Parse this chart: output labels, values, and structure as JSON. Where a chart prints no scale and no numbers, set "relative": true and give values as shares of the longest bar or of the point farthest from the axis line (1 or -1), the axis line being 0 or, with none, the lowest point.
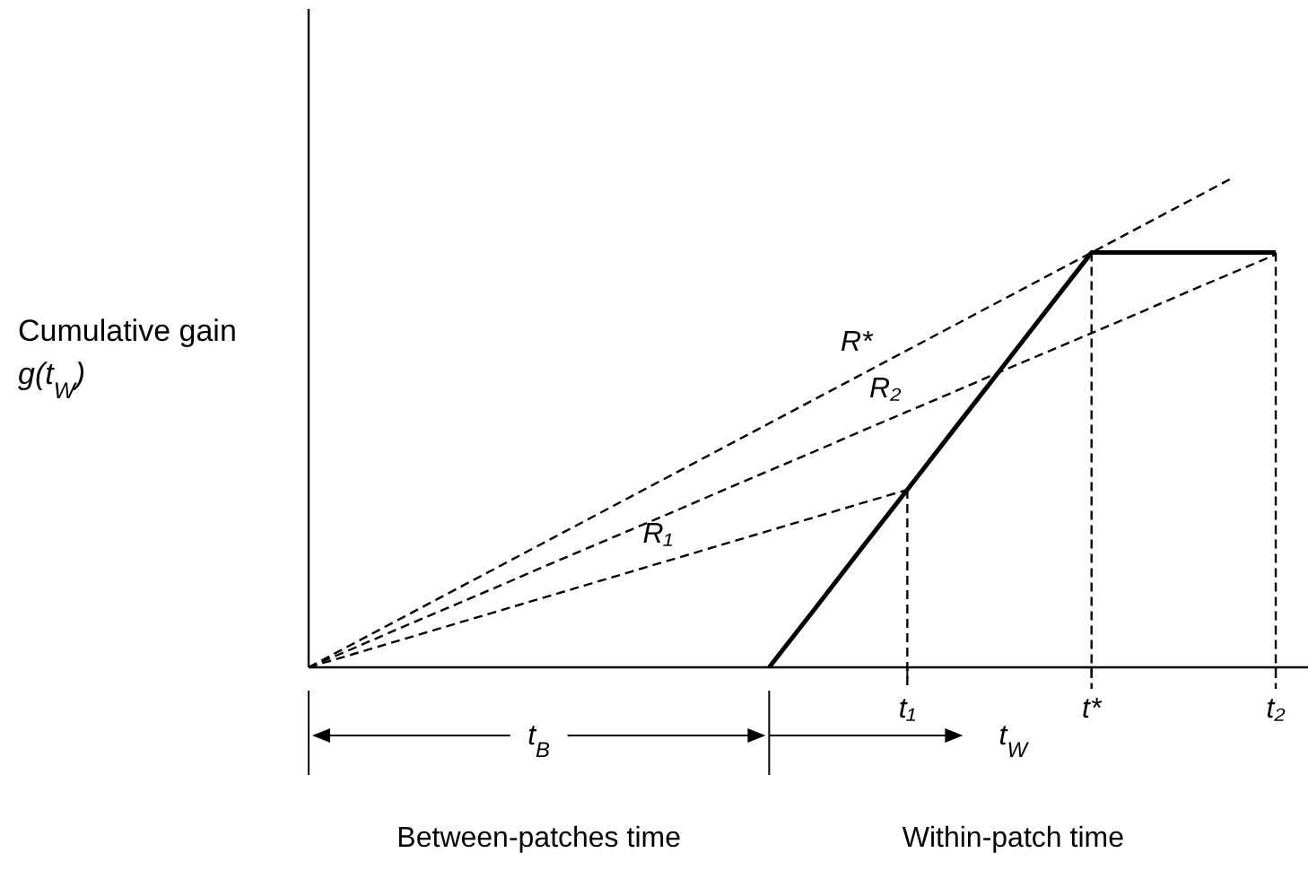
{
  "chart_data": {
    "type": "line",
    "relative": true,
    "ylabel": "Cumulative gain\ng(t$_{W}$)",
    "categories": [
      null,
      null,
      null,
      null,
      null,
      null,
      null,
      null,
      null,
      null,
      null,
      null,
      null,
      "t₁",
      null,
      null,
      null,
      "t*",
      null,
      null,
      null,
      "t₂"
    ],
    "marker": "none",
    "legend": false,
    "grid": false,
    "ref_lines": [
      {
        "axis": "x",
        "value": "t₁",
        "color": "#000000",
        "line_style": "dashed"
      },
      {
        "axis": "x",
        "value": "t*",
        "color": "#000000",
        "line_style": "dashed"
      },
      {
        "axis": "x",
        "value": "t₂",
        "color": "#000000",
        "line_style": "dashed"
      }
    ],
    "series": [
      {
        "color": "#000000",
        "line_style": "solid",
        "values": [
          null,
          null,
          null,
          null,
          null,
          null,
          null,
          null,
          null,
          null,
          0,
          0.121,
          0.243,
          0.364,
          0.486,
          0.607,
          0.729,
          0.85,
          0.85,
          0.85,
          0.85,
          0.85
        ]
      },
      {
        "name": "R*",
        "color": "#000000",
        "line_style": "dashed",
        "values": [
          0,
          0.05,
          0.1,
          0.15,
          0.2,
          0.25,
          0.3,
          0.35,
          0.4,
          0.45,
          0.5,
          0.55,
          0.6,
          0.65,
          0.7,
          0.75,
          0.8,
          0.85,
          0.9,
          0.95,
          1,
          null
        ]
      },
      {
        "name": "R₂",
        "color": "#000000",
        "line_style": "dashed",
        "values": [
          0,
          0.04,
          0.081,
          0.121,
          0.161,
          0.202,
          0.242,
          0.282,
          0.322,
          0.363,
          0.403,
          0.443,
          0.484,
          0.524,
          0.564,
          0.605,
          0.645,
          0.685,
          0.725,
          0.766,
          0.806,
          0.846
        ]
      },
      {
        "name": "R₁",
        "color": "#000000",
        "line_style": "dashed",
        "values": [
          0,
          0.028,
          0.056,
          0.084,
          0.112,
          0.14,
          0.168,
          0.196,
          0.224,
          0.252,
          0.28,
          0.308,
          0.336,
          0.364,
          null,
          null,
          null,
          null,
          null,
          null,
          null,
          null
        ]
      }
    ],
    "annotations": [
      "t$_{B}$",
      "t$_{W}$",
      "Between-patches time",
      "Within-patch time"
    ]
  }
}
